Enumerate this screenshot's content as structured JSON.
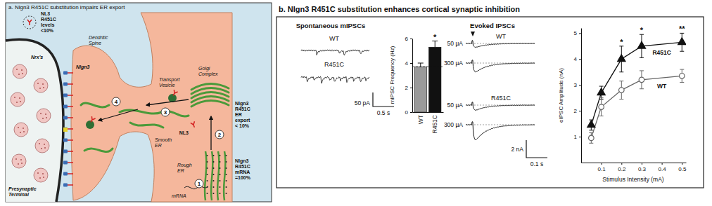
{
  "panel_a": {
    "title": "a. Nlgn3 R451C substitution impairs ER export",
    "labels": {
      "nl3_levels": [
        "NL3",
        "R451C",
        "levels",
        "<10%"
      ],
      "nrx": "Nrx's",
      "nlgn3": "Nlgn3",
      "dendritic_spine": [
        "Dendritic",
        "Spine"
      ],
      "transport_vesicle": [
        "Transport",
        "Vesicle"
      ],
      "golgi": [
        "Golgi",
        "Complex"
      ],
      "nl3": "NL3",
      "smooth_er": [
        "Smooth",
        "ER"
      ],
      "rough_er": [
        "Rough",
        "ER"
      ],
      "mrna": "mRNA",
      "presynaptic": [
        "Presynaptic",
        "Terminal"
      ],
      "er_export": [
        "Nlgn3",
        "R451C",
        "ER",
        "export",
        "< 10%"
      ],
      "mrna_levels": [
        "Nlgn3",
        "R451C",
        "mRNA",
        "=100%"
      ]
    },
    "steps": [
      "1",
      "2",
      "3",
      "4"
    ]
  },
  "panel_b": {
    "title": "b. Nlgn3 R451C substitution enhances cortical synaptic inhibition",
    "spontaneous": {
      "header": "Spontaneous mIPSCs",
      "traces": [
        "WT",
        "R451C"
      ],
      "scale_y": "50 pA",
      "scale_x": "0.5 s"
    },
    "evoked": {
      "header": "Evoked IPSCs",
      "groups": [
        "WT",
        "R451C"
      ],
      "stimuli": [
        "50 µA",
        "300 µA"
      ],
      "scale_y": "2 nA",
      "scale_x": "0.1 s"
    }
  },
  "chart_data": [
    {
      "type": "bar",
      "categories": [
        "WT",
        "R451C"
      ],
      "values": [
        3.7,
        5.3
      ],
      "errors": [
        0.3,
        0.5
      ],
      "colors": [
        "#9a9a9a",
        "#111111"
      ],
      "ylim": [
        0,
        6
      ],
      "yticks": [
        0,
        2,
        4,
        6
      ],
      "y_label": "mIPSC Frequency (Hz)",
      "annotations": [
        {
          "category": "R451C",
          "text": "*"
        }
      ]
    },
    {
      "type": "line",
      "x": [
        0.05,
        0.1,
        0.2,
        0.3,
        0.5
      ],
      "xlim": [
        0,
        0.52
      ],
      "xticks": [
        0.1,
        0.2,
        0.3,
        0.4,
        0.5
      ],
      "ylim": [
        0,
        5.2
      ],
      "yticks": [
        1,
        2,
        3,
        4,
        5
      ],
      "x_label": "Stimulus Intensity (mA)",
      "y_label": "eIPSC Amplitude (nA)",
      "series": [
        {
          "name": "R451C",
          "color": "#111111",
          "marker": "triangle",
          "values": [
            1.45,
            2.7,
            4.0,
            4.5,
            4.65
          ],
          "errors": [
            0.2,
            0.25,
            0.5,
            0.45,
            0.35
          ]
        },
        {
          "name": "WT",
          "color": "#666666",
          "marker": "circle",
          "values": [
            0.95,
            2.15,
            2.8,
            3.2,
            3.35
          ],
          "errors": [
            0.2,
            0.35,
            0.35,
            0.35,
            0.25
          ]
        }
      ],
      "annotations": [
        {
          "x": 0.2,
          "text": "*"
        },
        {
          "x": 0.3,
          "text": "*"
        },
        {
          "x": 0.5,
          "text": "**"
        }
      ]
    }
  ]
}
